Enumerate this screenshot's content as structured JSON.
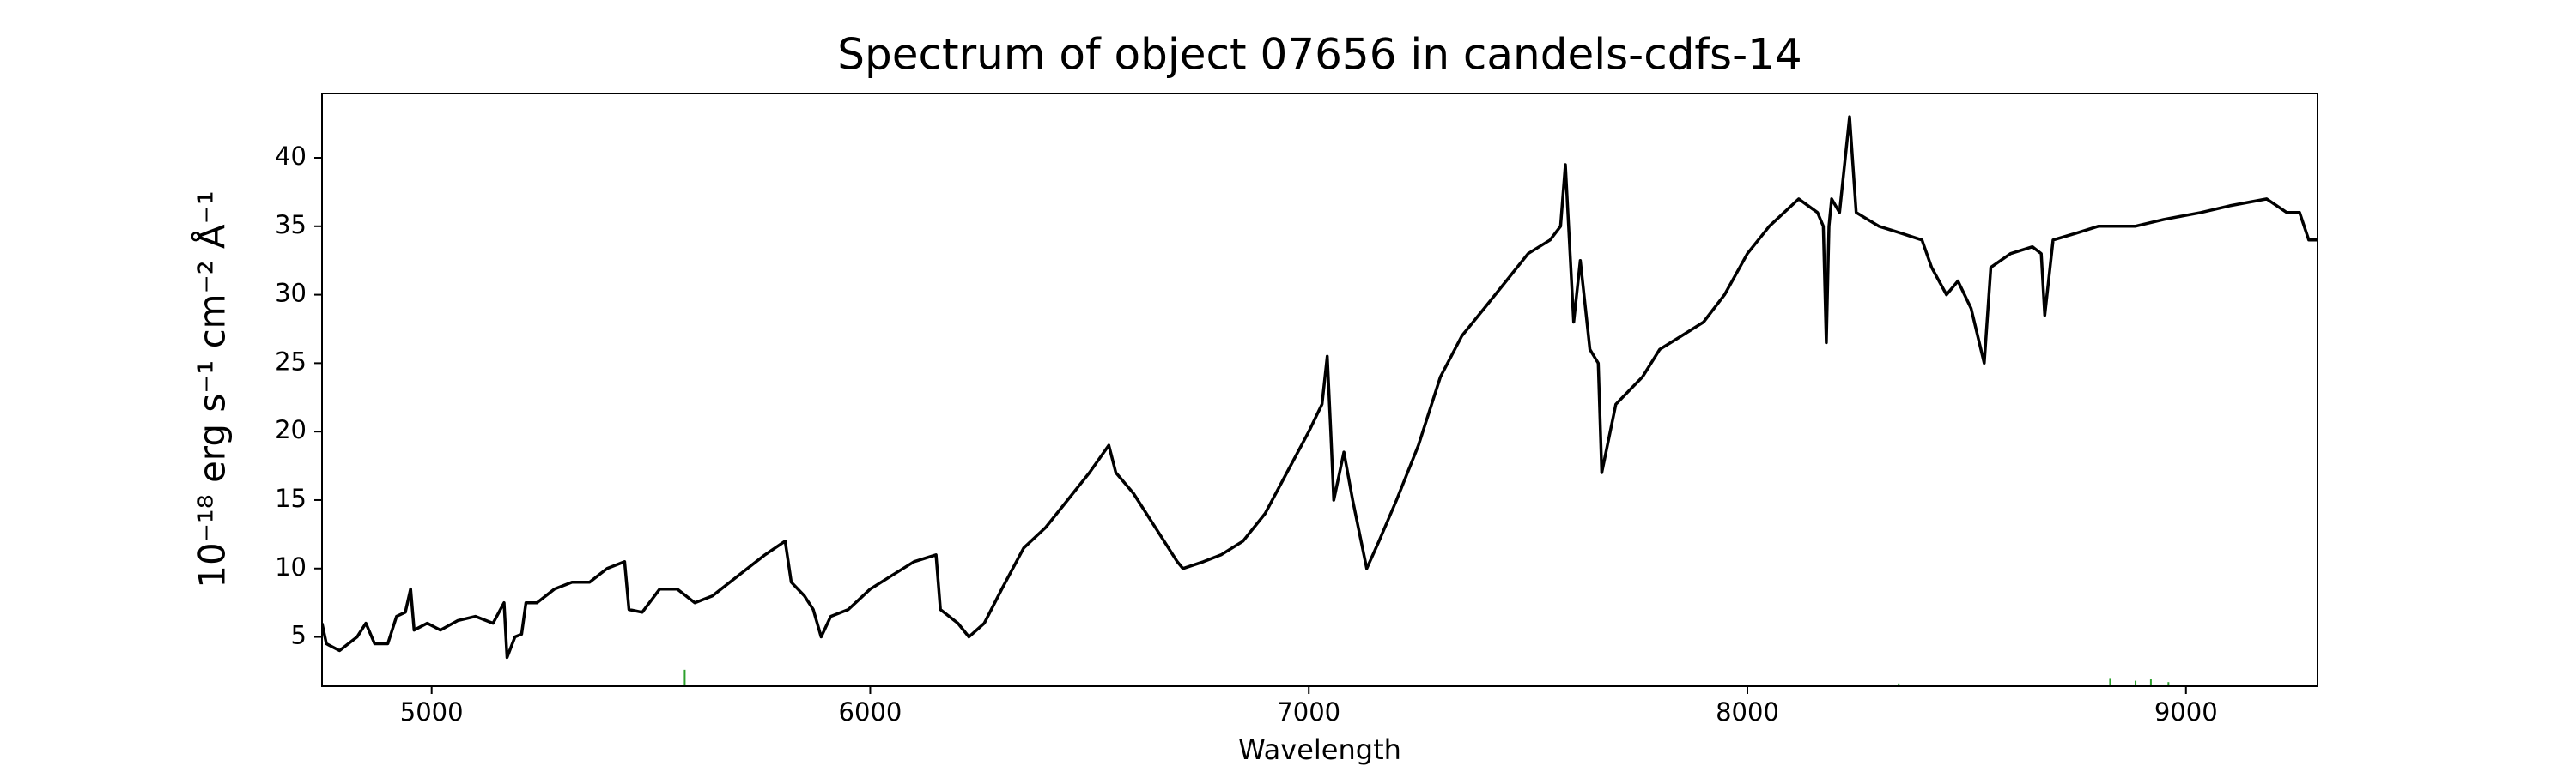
{
  "chart_data": {
    "type": "line",
    "title": "Spectrum of object 07656 in candels-cdfs-14",
    "xlabel": "Wavelength",
    "ylabel": "10⁻¹⁸ erg s⁻¹ cm⁻² Å⁻¹",
    "xlim": [
      4750,
      9300
    ],
    "xticks": [
      5000,
      6000,
      7000,
      8000,
      9000
    ],
    "ylim": [
      1.4,
      44.7
    ],
    "yticks": [
      5,
      10,
      15,
      20,
      25,
      30,
      35,
      40
    ],
    "grid": false,
    "series": [
      {
        "color": "#000000",
        "style": "line",
        "x": [
          4750,
          4760,
          4790,
          4830,
          4850,
          4870,
          4900,
          4920,
          4940,
          4952,
          4960,
          4990,
          5020,
          5060,
          5100,
          5140,
          5165,
          5172,
          5190,
          5205,
          5215,
          5240,
          5280,
          5320,
          5360,
          5400,
          5440,
          5450,
          5480,
          5520,
          5560,
          5600,
          5640,
          5680,
          5720,
          5760,
          5806,
          5820,
          5850,
          5870,
          5888,
          5910,
          5950,
          6000,
          6050,
          6100,
          6150,
          6160,
          6200,
          6225,
          6260,
          6300,
          6350,
          6400,
          6450,
          6500,
          6544,
          6560,
          6600,
          6650,
          6700,
          6713,
          6760,
          6800,
          6850,
          6900,
          6950,
          7000,
          7030,
          7042,
          7050,
          7057,
          7080,
          7100,
          7132,
          7160,
          7200,
          7250,
          7300,
          7349,
          7400,
          7450,
          7500,
          7550,
          7574,
          7585,
          7604,
          7619,
          7641,
          7660,
          7668,
          7700,
          7761,
          7800,
          7850,
          7900,
          7948,
          8000,
          8050,
          8117,
          8160,
          8173,
          8180,
          8186,
          8192,
          8210,
          8233,
          8248,
          8300,
          8350,
          8398,
          8420,
          8454,
          8480,
          8510,
          8540,
          8555,
          8600,
          8650,
          8670,
          8678,
          8697,
          8750,
          8800,
          8884,
          8950,
          9034,
          9100,
          9184,
          9230,
          9259,
          9280,
          9300
        ],
        "values": [
          6,
          4.5,
          4,
          5,
          6,
          4.5,
          4.5,
          6.5,
          6.8,
          8.5,
          5.5,
          6,
          5.5,
          6.2,
          6.5,
          6,
          7.5,
          3.5,
          5,
          5.2,
          7.5,
          7.5,
          8.5,
          9,
          9,
          10,
          10.5,
          7,
          6.8,
          8.5,
          8.5,
          7.5,
          8,
          9,
          10,
          11,
          12,
          9,
          8,
          7,
          5,
          6.5,
          7,
          8.5,
          9.5,
          10.5,
          11,
          7,
          6,
          5,
          6,
          8.5,
          11.5,
          13,
          15,
          17,
          19,
          17,
          15.5,
          13,
          10.5,
          10,
          10.5,
          11,
          12,
          14,
          17,
          20,
          22,
          25.5,
          20,
          15,
          18.5,
          15,
          10,
          12,
          15,
          19,
          24,
          27,
          29,
          31,
          33,
          34,
          35,
          39.5,
          28,
          32.5,
          26,
          25,
          17,
          22,
          24,
          26,
          27,
          28,
          30,
          33,
          35,
          37,
          36,
          35,
          26.5,
          35,
          37,
          36,
          43,
          36,
          35,
          34.5,
          34,
          32,
          30,
          31,
          29,
          25,
          32,
          33,
          33.5,
          33,
          28.5,
          34,
          34.5,
          35,
          35,
          35.5,
          36,
          36.5,
          37,
          36,
          36,
          34,
          34
        ]
      },
      {
        "color": "#2ca02c",
        "style": "stem",
        "x": [
          5577,
          8345,
          8827,
          8885,
          8920,
          8960
        ],
        "values": [
          2.6,
          1.6,
          2.0,
          1.8,
          1.9,
          1.7
        ]
      }
    ]
  }
}
